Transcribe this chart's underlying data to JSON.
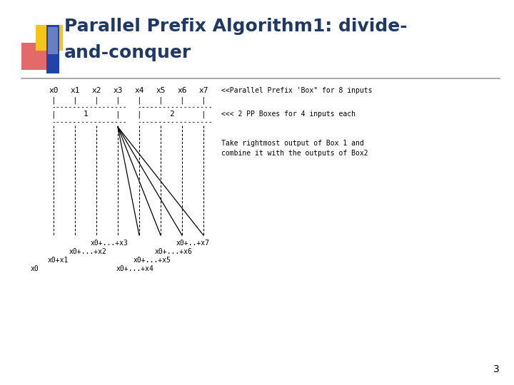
{
  "bg_color": "#ffffff",
  "title_line1": "Parallel Prefix Algorithm1: divide-",
  "title_line2": "and-conquer",
  "title_color": "#1f3864",
  "title_fontsize": 18,
  "slide_number": "3",
  "body_fontsize": 8,
  "inputs": [
    "x0",
    "x1",
    "x2",
    "x3",
    "x4",
    "x5",
    "x6",
    "x7"
  ],
  "box1_label": "1",
  "box2_label": "2",
  "right_text1": "<<Parallel Prefix 'Box\" for 8 inputs",
  "right_text2": "<<< 2 PP Boxes for 4 inputs each",
  "right_text3_line1": "Take rightmost output of Box 1 and",
  "right_text3_line2": "combine it with the outputs of Box2",
  "bottom_labels_left": [
    "x0+...+x3",
    "x0+...+x2",
    "x0+x1",
    "x0"
  ],
  "bottom_labels_right": [
    "x0+..+x7",
    "x0+...+x6",
    "x0+...+x5",
    "x0+...+x4"
  ],
  "accent_yellow": "#f5c518",
  "accent_red": "#e05050",
  "accent_blue": "#2244aa",
  "accent_light": "#8899cc"
}
